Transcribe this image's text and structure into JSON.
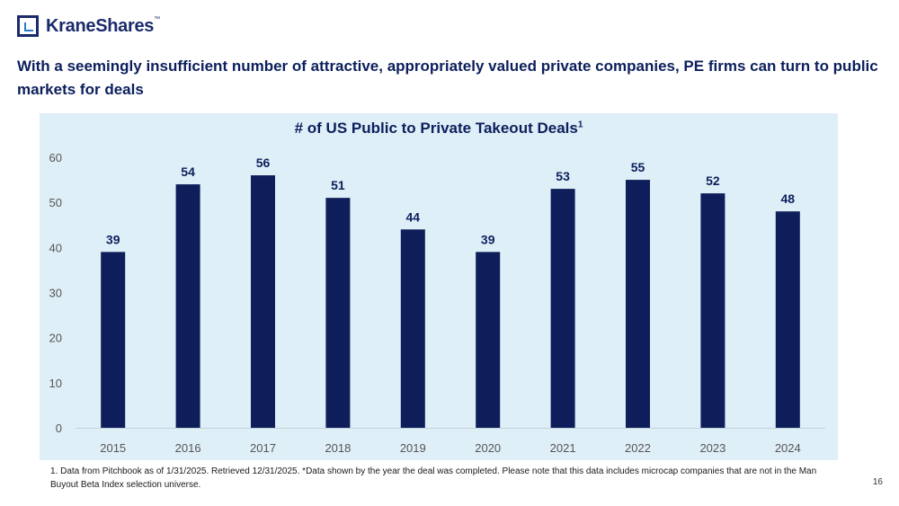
{
  "brand": {
    "name": "KraneShares",
    "trademark": "™"
  },
  "headline": "With a seemingly insufficient number of attractive, appropriately valued private companies, PE firms can turn to public markets for deals",
  "chart_data": {
    "type": "bar",
    "title": "# of US Public to Private Takeout Deals",
    "title_superscript": "1",
    "categories": [
      "2015",
      "2016",
      "2017",
      "2018",
      "2019",
      "2020",
      "2021",
      "2022",
      "2023",
      "2024"
    ],
    "values": [
      39,
      54,
      56,
      51,
      44,
      39,
      53,
      55,
      52,
      48
    ],
    "data_labels": [
      "39",
      "54",
      "56",
      "51",
      "44",
      "39",
      "53",
      "55",
      "52",
      "48"
    ],
    "yticks": [
      0,
      10,
      20,
      30,
      40,
      50,
      60
    ],
    "ytick_labels": [
      "0",
      "10",
      "20",
      "30",
      "40",
      "50",
      "60"
    ],
    "ylim": [
      0,
      60
    ],
    "xlabel": "",
    "ylabel": "",
    "grid": false,
    "bar_color": "#0e1e5b"
  },
  "footnote": "1. Data from Pitchbook as of 1/31/2025. Retrieved 12/31/2025. *Data shown by the year the deal was completed. Please note that this data includes microcap companies that are not in the Man Buyout Beta Index selection universe.",
  "page_number": "16"
}
